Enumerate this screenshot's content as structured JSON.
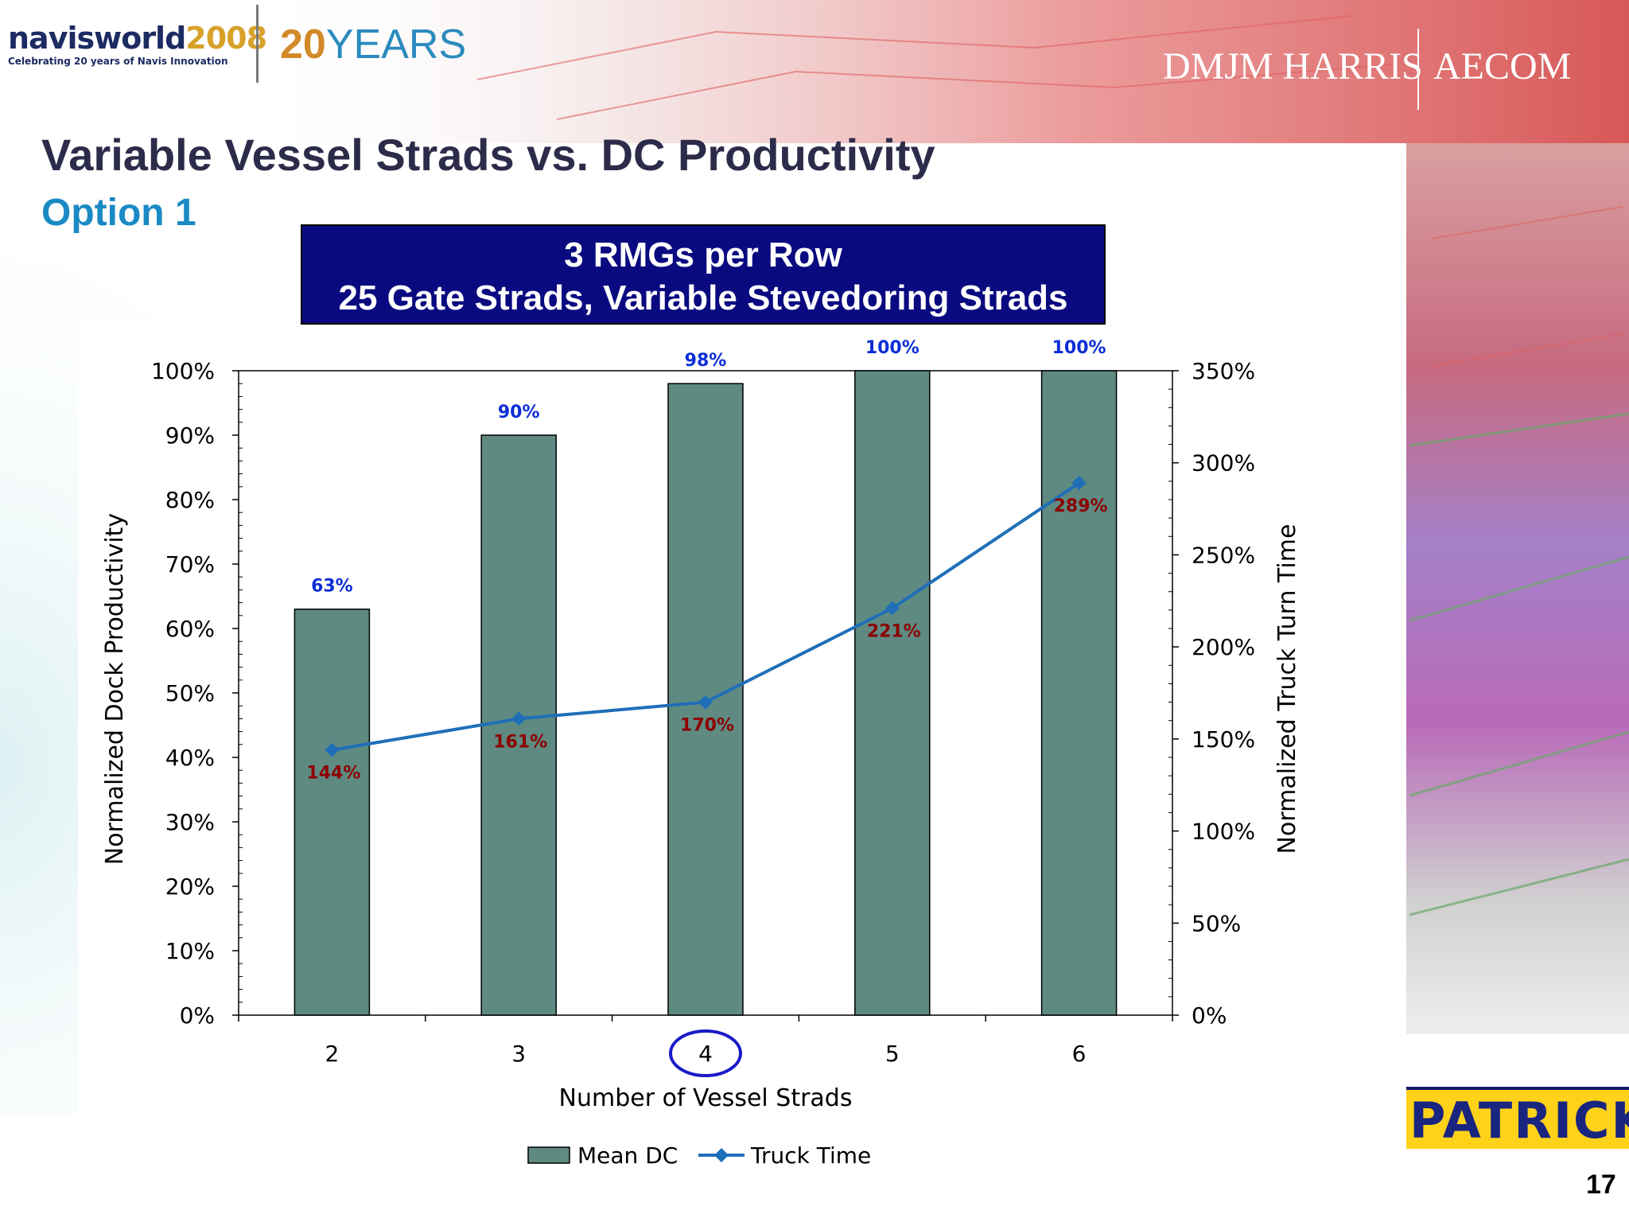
{
  "header": {
    "navis_brand": "navisworld",
    "navis_year": "2008",
    "navis_tagline": "Celebrating 20 years of Navis Innovation",
    "anniversary_number": "20",
    "anniversary_word": "YEARS",
    "corp_name_1": "DMJM HARRIS",
    "corp_name_2": "AECOM"
  },
  "slide": {
    "title": "Variable Vessel Strads vs. DC Productivity",
    "subtitle": "Option 1",
    "banner_line1": "3 RMGs per Row",
    "banner_line2": "25 Gate Strads, Variable Stevedoring Strads",
    "page_number": "17",
    "footer_logo": "PATRICK"
  },
  "colors": {
    "bar_fill": "#5e8a82",
    "line": "#1f6fb8",
    "marker": "#1f6fb8",
    "bar_label": "#0b2ed6",
    "line_label": "#8b0000",
    "highlight_circle": "#1a1ac8",
    "banner_bg": "#0a0a80",
    "title": "#2c2c4a",
    "subtitle": "#1a8ac4"
  },
  "chart_data": {
    "type": "bar",
    "categories": [
      "2",
      "3",
      "4",
      "5",
      "6"
    ],
    "highlighted_category": "4",
    "series": [
      {
        "name": "Mean DC",
        "type": "bar",
        "axis": "left",
        "values": [
          63,
          90,
          98,
          100,
          100
        ],
        "labels": [
          "63%",
          "90%",
          "98%",
          "100%",
          "100%"
        ]
      },
      {
        "name": "Truck Time",
        "type": "line",
        "axis": "right",
        "values": [
          144,
          161,
          170,
          221,
          289
        ],
        "labels": [
          "144%",
          "161%",
          "170%",
          "221%",
          "289%"
        ]
      }
    ],
    "xlabel": "Number of Vessel Strads",
    "ylabel_left": "Normalized Dock Productivity",
    "ylabel_right": "Normalized Truck Turn Time",
    "ylim_left": [
      0,
      100
    ],
    "ylim_right": [
      0,
      350
    ],
    "yticks_left": [
      "0%",
      "10%",
      "20%",
      "30%",
      "40%",
      "50%",
      "60%",
      "70%",
      "80%",
      "90%",
      "100%"
    ],
    "yticks_right": [
      "0%",
      "50%",
      "100%",
      "150%",
      "200%",
      "250%",
      "300%",
      "350%"
    ],
    "legend_position": "bottom",
    "grid": false
  }
}
